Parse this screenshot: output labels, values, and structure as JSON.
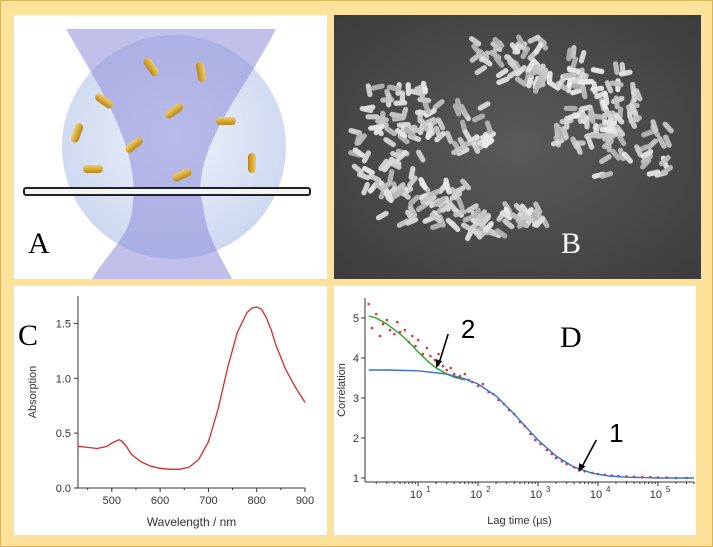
{
  "panels": {
    "a": {
      "letter": "A"
    },
    "b": {
      "letter": "B"
    },
    "c": {
      "letter": "C"
    },
    "d": {
      "letter": "D"
    }
  },
  "colors": {
    "background": "#fce29a",
    "beam": "#8c8cd8",
    "droplet": "#dfe6f6",
    "nanorod": "#d6a321",
    "spectrum": "#d62a2a",
    "data_points": "#e8302a",
    "fit_green": "#2aa02a",
    "fit_blue": "#3a6fd8"
  },
  "chart_data": [
    {
      "type": "line",
      "panel": "C",
      "title": "",
      "xlabel": "Wavelength / nm",
      "ylabel": "Absorption",
      "xlim": [
        430,
        900
      ],
      "ylim": [
        0,
        1.75
      ],
      "xticks": [
        500,
        600,
        700,
        800,
        900
      ],
      "xtick_labels": [
        "500",
        "600",
        "700",
        "800",
        "900"
      ],
      "yticks": [
        0,
        0.5,
        1.0,
        1.5
      ],
      "ytick_labels": [
        "0.0",
        "0.5",
        "1.0",
        "1.5"
      ],
      "grid": false,
      "series": [
        {
          "color": "#d62a2a",
          "x": [
            430,
            450,
            470,
            490,
            500,
            510,
            515,
            520,
            530,
            540,
            560,
            580,
            600,
            620,
            640,
            660,
            680,
            700,
            720,
            740,
            760,
            780,
            790,
            800,
            810,
            820,
            830,
            840,
            860,
            880,
            900
          ],
          "y": [
            0.38,
            0.37,
            0.36,
            0.38,
            0.41,
            0.43,
            0.44,
            0.43,
            0.38,
            0.31,
            0.24,
            0.2,
            0.18,
            0.17,
            0.17,
            0.19,
            0.26,
            0.42,
            0.72,
            1.1,
            1.42,
            1.6,
            1.64,
            1.65,
            1.63,
            1.55,
            1.44,
            1.3,
            1.08,
            0.92,
            0.78
          ]
        }
      ]
    },
    {
      "type": "line",
      "panel": "D",
      "title": "",
      "xlabel": "Lag time (µs)",
      "ylabel": "Correlation",
      "xscale": "log",
      "xlim": [
        1.3,
        400000
      ],
      "ylim": [
        0.9,
        5.5
      ],
      "xticks": [
        10,
        100,
        1000,
        10000,
        100000
      ],
      "xtick_labels": [
        "10",
        "10",
        "10",
        "10",
        "10"
      ],
      "xtick_exponents": [
        "1",
        "2",
        "3",
        "4",
        "5"
      ],
      "yticks": [
        1,
        2,
        3,
        4,
        5
      ],
      "ytick_labels": [
        "1",
        "2",
        "3",
        "4",
        "5"
      ],
      "grid": false,
      "annotations": [
        {
          "text": "2",
          "x": 20,
          "y": 3.75
        },
        {
          "text": "1",
          "x": 4700,
          "y": 1.15
        }
      ],
      "series": [
        {
          "kind": "scatter",
          "color": "#e8302a",
          "x": [
            1.5,
            1.7,
            2,
            2.3,
            2.6,
            3,
            3.4,
            4,
            4.5,
            5,
            6,
            7,
            8,
            9,
            10,
            12,
            14,
            16,
            19,
            22,
            26,
            30,
            35,
            40,
            50,
            60,
            70,
            80,
            100,
            120,
            150,
            180,
            220,
            270,
            330,
            400,
            500,
            600,
            750,
            900,
            1100,
            1400,
            1700,
            2000,
            2500,
            3000,
            4000,
            5000,
            6000,
            8000,
            10000,
            13000,
            17000,
            22000,
            30000,
            40000,
            55000,
            75000,
            100000,
            140000,
            200000,
            300000
          ],
          "y": [
            5.35,
            4.75,
            5.1,
            4.55,
            4.85,
            4.95,
            4.7,
            4.6,
            4.9,
            4.65,
            4.7,
            4.4,
            4.55,
            4.3,
            4.45,
            4.1,
            4.25,
            4.05,
            3.95,
            4.1,
            3.8,
            3.7,
            3.75,
            3.6,
            3.55,
            3.6,
            3.45,
            3.4,
            3.3,
            3.35,
            3.15,
            3.1,
            2.95,
            2.85,
            2.7,
            2.6,
            2.4,
            2.3,
            2.1,
            1.95,
            1.85,
            1.7,
            1.6,
            1.5,
            1.42,
            1.35,
            1.27,
            1.2,
            1.17,
            1.13,
            1.1,
            1.08,
            1.06,
            1.05,
            1.04,
            1.03,
            1.02,
            1.02,
            1.01,
            1.01,
            1.0,
            1.0
          ]
        },
        {
          "kind": "line",
          "color": "#2aa02a",
          "x": [
            1.5,
            2,
            3,
            5,
            7,
            10,
            15,
            20,
            30,
            40,
            60
          ],
          "y": [
            5.05,
            5.0,
            4.85,
            4.6,
            4.4,
            4.15,
            3.9,
            3.75,
            3.6,
            3.52,
            3.45
          ]
        },
        {
          "kind": "line",
          "color": "#3a6fd8",
          "x": [
            1.5,
            3,
            10,
            30,
            60,
            100,
            200,
            400,
            700,
            1000,
            2000,
            4000,
            8000,
            15000,
            30000,
            60000,
            100000,
            200000,
            400000
          ],
          "y": [
            3.7,
            3.7,
            3.68,
            3.6,
            3.48,
            3.35,
            3.05,
            2.6,
            2.2,
            1.95,
            1.55,
            1.27,
            1.12,
            1.05,
            1.02,
            1.01,
            1.0,
            1.0,
            1.0
          ]
        }
      ]
    }
  ]
}
